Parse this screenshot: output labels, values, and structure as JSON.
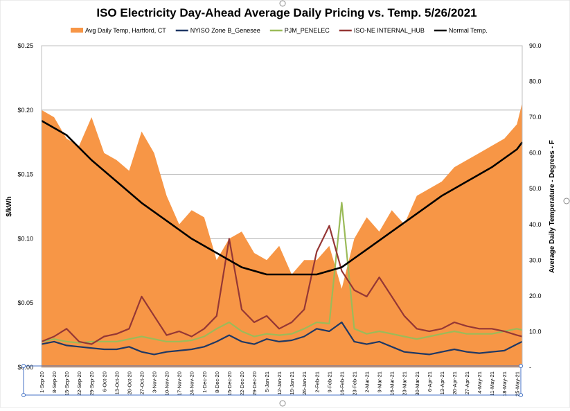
{
  "chart_data": {
    "type": "area",
    "title": "ISO Electricity Day-Ahead Average Daily Pricing vs. Temp. 5/26/2021",
    "ylabel": "$/kWh",
    "y2label": "Average Daily Temperature - Degrees - F",
    "ylim": [
      0,
      0.25
    ],
    "y2lim": [
      0,
      90
    ],
    "grid": true,
    "legend_position": "top",
    "y_ticks": [
      "$0.00",
      "$0.05",
      "$0.10",
      "$0.15",
      "$0.20",
      "$0.25"
    ],
    "y2_ticks": [
      "-",
      "10.0",
      "20.0",
      "30.0",
      "40.0",
      "50.0",
      "60.0",
      "70.0",
      "80.0",
      "90.0"
    ],
    "x_ticks": [
      "1-Sep-20",
      "8-Sep-20",
      "15-Sep-20",
      "22-Sep-20",
      "29-Sep-20",
      "6-Oct-20",
      "13-Oct-20",
      "20-Oct-20",
      "27-Oct-20",
      "3-Nov-20",
      "10-Nov-20",
      "17-Nov-20",
      "24-Nov-20",
      "1-Dec-20",
      "8-Dec-20",
      "15-Dec-20",
      "22-Dec-20",
      "29-Dec-20",
      "5-Jan-21",
      "12-Jan-21",
      "19-Jan-21",
      "26-Jan-21",
      "2-Feb-21",
      "9-Feb-21",
      "16-Feb-21",
      "23-Feb-21",
      "2-Mar-21",
      "9-Mar-21",
      "16-Mar-21",
      "23-Mar-21",
      "30-Mar-21",
      "6-Apr-21",
      "13-Apr-21",
      "20-Apr-21",
      "27-Apr-21",
      "4-May-21",
      "11-May-21",
      "18-May-21",
      "25-May-21"
    ],
    "series": [
      {
        "name": "Avg Daily Temp, Hartford, CT",
        "axis": "right",
        "kind": "area",
        "color": "#F79646",
        "x": [
          0,
          7,
          14,
          21,
          28,
          35,
          42,
          49,
          56,
          63,
          70,
          77,
          84,
          91,
          98,
          105,
          112,
          119,
          126,
          133,
          140,
          147,
          154,
          161,
          168,
          175,
          182,
          189,
          196,
          203,
          210,
          217,
          224,
          231,
          238,
          245,
          252,
          259,
          266,
          269
        ],
        "values": [
          72,
          70,
          64,
          62,
          70,
          60,
          58,
          55,
          66,
          60,
          48,
          40,
          44,
          42,
          30,
          36,
          38,
          32,
          30,
          34,
          26,
          30,
          30,
          34,
          22,
          36,
          42,
          38,
          44,
          40,
          48,
          50,
          52,
          56,
          58,
          60,
          62,
          64,
          68,
          74
        ]
      },
      {
        "name": "NYISO Zone B_Genesee",
        "axis": "left",
        "kind": "line",
        "color": "#1F3864",
        "x": [
          0,
          7,
          14,
          21,
          28,
          35,
          42,
          49,
          56,
          63,
          70,
          77,
          84,
          91,
          98,
          105,
          112,
          119,
          126,
          133,
          140,
          147,
          154,
          161,
          168,
          175,
          182,
          189,
          196,
          203,
          210,
          217,
          224,
          231,
          238,
          245,
          252,
          259,
          266,
          269
        ],
        "values": [
          0.018,
          0.02,
          0.017,
          0.016,
          0.015,
          0.014,
          0.014,
          0.016,
          0.012,
          0.01,
          0.012,
          0.013,
          0.014,
          0.016,
          0.02,
          0.025,
          0.02,
          0.018,
          0.022,
          0.02,
          0.021,
          0.024,
          0.03,
          0.028,
          0.035,
          0.02,
          0.018,
          0.02,
          0.016,
          0.012,
          0.011,
          0.01,
          0.012,
          0.014,
          0.012,
          0.011,
          0.012,
          0.013,
          0.018,
          0.02
        ]
      },
      {
        "name": "PJM_PENELEC",
        "axis": "left",
        "kind": "line",
        "color": "#9BBB59",
        "x": [
          0,
          7,
          14,
          21,
          28,
          35,
          42,
          49,
          56,
          63,
          70,
          77,
          84,
          91,
          98,
          105,
          112,
          119,
          126,
          133,
          140,
          147,
          154,
          161,
          168,
          175,
          182,
          189,
          196,
          203,
          210,
          217,
          224,
          231,
          238,
          245,
          252,
          259,
          266,
          269
        ],
        "values": [
          0.02,
          0.022,
          0.02,
          0.019,
          0.02,
          0.02,
          0.02,
          0.022,
          0.024,
          0.022,
          0.02,
          0.02,
          0.021,
          0.024,
          0.03,
          0.035,
          0.028,
          0.024,
          0.026,
          0.025,
          0.026,
          0.03,
          0.035,
          0.034,
          0.128,
          0.03,
          0.026,
          0.028,
          0.026,
          0.024,
          0.022,
          0.024,
          0.026,
          0.028,
          0.026,
          0.026,
          0.026,
          0.028,
          0.03,
          0.029
        ]
      },
      {
        "name": "ISO-NE INTERNAL_HUB",
        "axis": "left",
        "kind": "line",
        "color": "#953735",
        "x": [
          0,
          7,
          14,
          21,
          28,
          35,
          42,
          49,
          56,
          63,
          70,
          77,
          84,
          91,
          98,
          105,
          112,
          119,
          126,
          133,
          140,
          147,
          154,
          161,
          168,
          175,
          182,
          189,
          196,
          203,
          210,
          217,
          224,
          231,
          238,
          245,
          252,
          259,
          266,
          269
        ],
        "values": [
          0.02,
          0.024,
          0.03,
          0.02,
          0.018,
          0.024,
          0.026,
          0.03,
          0.055,
          0.04,
          0.025,
          0.028,
          0.024,
          0.03,
          0.04,
          0.1,
          0.045,
          0.035,
          0.04,
          0.03,
          0.035,
          0.045,
          0.09,
          0.11,
          0.075,
          0.06,
          0.055,
          0.07,
          0.055,
          0.04,
          0.03,
          0.028,
          0.03,
          0.035,
          0.032,
          0.03,
          0.03,
          0.028,
          0.025,
          0.024
        ]
      },
      {
        "name": "Normal Temp.",
        "axis": "right",
        "kind": "line",
        "color": "#000000",
        "x": [
          0,
          14,
          28,
          42,
          56,
          70,
          84,
          98,
          112,
          126,
          140,
          154,
          168,
          182,
          196,
          210,
          224,
          238,
          252,
          266,
          269
        ],
        "values": [
          69,
          65,
          58,
          52,
          46,
          41,
          36,
          32,
          28,
          26,
          26,
          26,
          28,
          33,
          38,
          43,
          48,
          52,
          56,
          61,
          63
        ]
      }
    ]
  }
}
